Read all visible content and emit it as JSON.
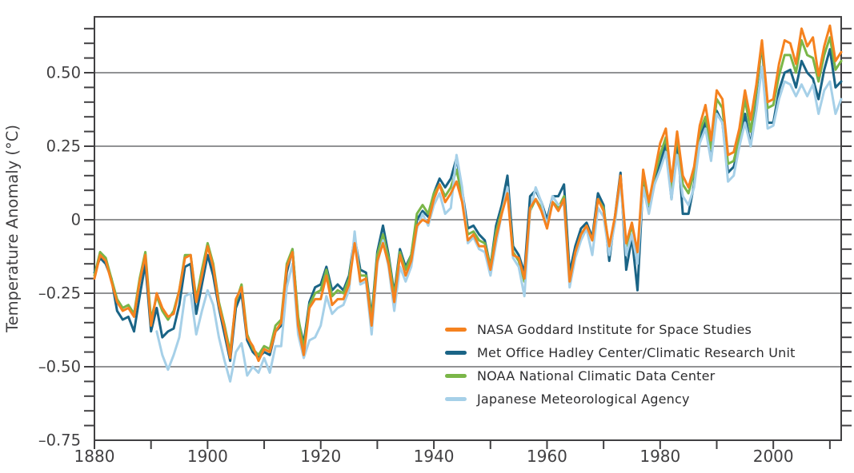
{
  "chart_data": {
    "type": "line",
    "title": "",
    "ylabel": "Temperature Anomaly (°C)",
    "x_range": [
      1880,
      2012
    ],
    "y_range": [
      -0.75,
      0.69
    ],
    "grid": true,
    "background": "#FFFFFF",
    "axis_color": "#414042",
    "grid_color": "#6D6E71",
    "text_color": "#414042",
    "legend_position": "inside-bottom-right",
    "y_gridlines": [
      0.5,
      0.25,
      0,
      -0.25,
      -0.5
    ],
    "y_ticks": [
      {
        "value": 0.5,
        "label": "0.50"
      },
      {
        "value": 0.25,
        "label": "0.25"
      },
      {
        "value": 0,
        "label": "0"
      },
      {
        "value": -0.25,
        "label": "–0.25"
      },
      {
        "value": -0.5,
        "label": "–0.50"
      },
      {
        "value": -0.75,
        "label": "–0.75"
      }
    ],
    "y_minor_tick_step": 0.05,
    "x_minor_tick_step": 10,
    "x_ticks": [
      {
        "year": 1880,
        "label": "1880"
      },
      {
        "year": 1900,
        "label": "1900"
      },
      {
        "year": 1920,
        "label": "1920"
      },
      {
        "year": 1940,
        "label": "1940"
      },
      {
        "year": 1960,
        "label": "1960"
      },
      {
        "year": 1980,
        "label": "1980"
      },
      {
        "year": 2000,
        "label": "2000"
      }
    ],
    "years_start": 1880,
    "draw_order": [
      1,
      2,
      3,
      0
    ],
    "series": [
      {
        "name": "nasa-giss",
        "label": "NASA Goddard Institute for Space Studies",
        "color": "#F5821F",
        "values": [
          -0.2,
          -0.12,
          -0.14,
          -0.21,
          -0.28,
          -0.31,
          -0.3,
          -0.33,
          -0.21,
          -0.12,
          -0.36,
          -0.25,
          -0.3,
          -0.33,
          -0.32,
          -0.24,
          -0.13,
          -0.12,
          -0.28,
          -0.19,
          -0.09,
          -0.16,
          -0.29,
          -0.37,
          -0.47,
          -0.27,
          -0.23,
          -0.4,
          -0.43,
          -0.48,
          -0.44,
          -0.45,
          -0.38,
          -0.35,
          -0.16,
          -0.11,
          -0.36,
          -0.46,
          -0.3,
          -0.27,
          -0.27,
          -0.19,
          -0.29,
          -0.27,
          -0.27,
          -0.22,
          -0.08,
          -0.21,
          -0.2,
          -0.36,
          -0.14,
          -0.08,
          -0.15,
          -0.28,
          -0.12,
          -0.19,
          -0.14,
          -0.02,
          0.0,
          -0.01,
          0.07,
          0.12,
          0.06,
          0.09,
          0.13,
          0.06,
          -0.07,
          -0.05,
          -0.09,
          -0.09,
          -0.17,
          -0.06,
          0.02,
          0.09,
          -0.12,
          -0.13,
          -0.2,
          0.04,
          0.07,
          0.03,
          -0.03,
          0.06,
          0.03,
          0.07,
          -0.21,
          -0.11,
          -0.05,
          -0.02,
          -0.07,
          0.07,
          0.03,
          -0.09,
          0.01,
          0.15,
          -0.08,
          -0.01,
          -0.11,
          0.17,
          0.06,
          0.16,
          0.26,
          0.31,
          0.13,
          0.3,
          0.15,
          0.11,
          0.18,
          0.32,
          0.39,
          0.27,
          0.44,
          0.41,
          0.22,
          0.23,
          0.31,
          0.44,
          0.34,
          0.46,
          0.61,
          0.4,
          0.41,
          0.53,
          0.61,
          0.6,
          0.53,
          0.65,
          0.59,
          0.62,
          0.49,
          0.59,
          0.66,
          0.54,
          0.57
        ]
      },
      {
        "name": "met-office-hadcrut",
        "label": "Met Office Hadley Center/Climatic Research Unit",
        "color": "#1A6486",
        "values": [
          -0.18,
          -0.13,
          -0.15,
          -0.2,
          -0.31,
          -0.34,
          -0.33,
          -0.38,
          -0.26,
          -0.15,
          -0.38,
          -0.3,
          -0.4,
          -0.38,
          -0.37,
          -0.29,
          -0.16,
          -0.15,
          -0.32,
          -0.22,
          -0.12,
          -0.19,
          -0.3,
          -0.39,
          -0.48,
          -0.3,
          -0.25,
          -0.41,
          -0.45,
          -0.47,
          -0.45,
          -0.46,
          -0.38,
          -0.36,
          -0.18,
          -0.1,
          -0.34,
          -0.42,
          -0.28,
          -0.23,
          -0.22,
          -0.16,
          -0.24,
          -0.22,
          -0.24,
          -0.19,
          -0.06,
          -0.17,
          -0.18,
          -0.33,
          -0.11,
          -0.02,
          -0.12,
          -0.25,
          -0.1,
          -0.16,
          -0.12,
          0.0,
          0.03,
          0.01,
          0.09,
          0.14,
          0.11,
          0.14,
          0.21,
          0.1,
          -0.03,
          -0.02,
          -0.05,
          -0.07,
          -0.16,
          -0.02,
          0.05,
          0.15,
          -0.09,
          -0.12,
          -0.18,
          0.08,
          0.1,
          0.06,
          0.0,
          0.08,
          0.08,
          0.12,
          -0.18,
          -0.09,
          -0.03,
          -0.01,
          -0.06,
          0.09,
          0.05,
          -0.14,
          0.01,
          0.16,
          -0.17,
          -0.06,
          -0.24,
          0.13,
          0.04,
          0.14,
          0.19,
          0.26,
          0.07,
          0.28,
          0.02,
          0.02,
          0.12,
          0.28,
          0.33,
          0.21,
          0.37,
          0.33,
          0.16,
          0.18,
          0.25,
          0.36,
          0.25,
          0.43,
          0.6,
          0.33,
          0.33,
          0.44,
          0.5,
          0.51,
          0.45,
          0.54,
          0.5,
          0.48,
          0.41,
          0.51,
          0.58,
          0.45,
          0.47
        ]
      },
      {
        "name": "noaa-ncdc",
        "label": "NOAA National Climatic Data Center",
        "color": "#7AB648",
        "values": [
          -0.19,
          -0.11,
          -0.13,
          -0.2,
          -0.27,
          -0.3,
          -0.29,
          -0.32,
          -0.2,
          -0.11,
          -0.34,
          -0.26,
          -0.31,
          -0.34,
          -0.31,
          -0.24,
          -0.12,
          -0.12,
          -0.27,
          -0.17,
          -0.08,
          -0.15,
          -0.28,
          -0.36,
          -0.45,
          -0.28,
          -0.22,
          -0.39,
          -0.44,
          -0.46,
          -0.43,
          -0.44,
          -0.36,
          -0.34,
          -0.15,
          -0.1,
          -0.33,
          -0.44,
          -0.29,
          -0.25,
          -0.24,
          -0.17,
          -0.26,
          -0.24,
          -0.25,
          -0.2,
          -0.07,
          -0.19,
          -0.19,
          -0.34,
          -0.12,
          -0.05,
          -0.13,
          -0.26,
          -0.11,
          -0.17,
          -0.12,
          0.02,
          0.05,
          0.02,
          0.09,
          0.12,
          0.08,
          0.11,
          0.17,
          0.08,
          -0.05,
          -0.04,
          -0.07,
          -0.08,
          -0.16,
          -0.04,
          0.03,
          0.1,
          -0.11,
          -0.14,
          -0.21,
          0.03,
          0.07,
          0.04,
          -0.02,
          0.06,
          0.04,
          0.08,
          -0.21,
          -0.11,
          -0.05,
          -0.02,
          -0.07,
          0.07,
          0.04,
          -0.1,
          0.0,
          0.14,
          -0.09,
          -0.02,
          -0.12,
          0.15,
          0.05,
          0.15,
          0.22,
          0.28,
          0.11,
          0.29,
          0.12,
          0.09,
          0.16,
          0.3,
          0.35,
          0.24,
          0.41,
          0.38,
          0.19,
          0.2,
          0.28,
          0.41,
          0.3,
          0.44,
          0.6,
          0.38,
          0.39,
          0.49,
          0.56,
          0.56,
          0.5,
          0.61,
          0.56,
          0.55,
          0.47,
          0.56,
          0.62,
          0.51,
          0.54
        ]
      },
      {
        "name": "jma",
        "label": "Japanese Meteorological Agency",
        "color": "#A6D0E8",
        "values": [
          null,
          null,
          null,
          null,
          null,
          null,
          null,
          null,
          null,
          null,
          null,
          -0.38,
          -0.46,
          -0.51,
          -0.46,
          -0.4,
          -0.26,
          -0.25,
          -0.39,
          -0.31,
          -0.24,
          -0.29,
          -0.4,
          -0.48,
          -0.55,
          -0.45,
          -0.42,
          -0.53,
          -0.5,
          -0.52,
          -0.47,
          -0.52,
          -0.43,
          -0.43,
          -0.23,
          -0.15,
          -0.39,
          -0.47,
          -0.41,
          -0.4,
          -0.36,
          -0.26,
          -0.32,
          -0.3,
          -0.29,
          -0.24,
          -0.04,
          -0.22,
          -0.21,
          -0.39,
          -0.15,
          -0.07,
          -0.16,
          -0.31,
          -0.16,
          -0.21,
          -0.16,
          -0.03,
          0.02,
          -0.02,
          0.05,
          0.09,
          0.02,
          0.04,
          0.22,
          0.11,
          -0.08,
          -0.06,
          -0.1,
          -0.11,
          -0.19,
          -0.08,
          0.02,
          0.11,
          -0.13,
          -0.16,
          -0.26,
          0.03,
          0.11,
          0.06,
          -0.02,
          0.08,
          0.05,
          0.05,
          -0.23,
          -0.13,
          -0.07,
          -0.03,
          -0.12,
          0.04,
          0.01,
          -0.12,
          -0.01,
          0.13,
          -0.12,
          -0.05,
          -0.15,
          0.11,
          0.02,
          0.12,
          0.17,
          0.23,
          0.07,
          0.22,
          0.08,
          0.05,
          0.11,
          0.26,
          0.31,
          0.2,
          0.36,
          0.33,
          0.13,
          0.15,
          0.25,
          0.33,
          0.25,
          0.37,
          0.52,
          0.31,
          0.32,
          0.41,
          0.47,
          0.46,
          0.42,
          0.46,
          0.42,
          0.46,
          0.36,
          0.44,
          0.47,
          0.36,
          0.41
        ]
      }
    ]
  }
}
